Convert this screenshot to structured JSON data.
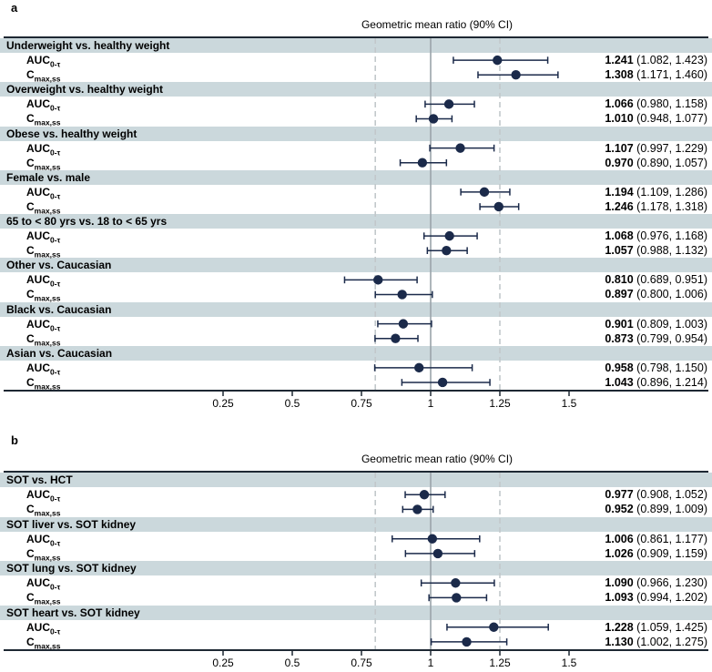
{
  "colors": {
    "band": "#cbd8dc",
    "marker": "#1b2a4a",
    "ci_line": "#1b2a4a",
    "frame": "#1e2833",
    "reference_solid": "#9aa4aa",
    "reference_dashed": "#c2c8cb"
  },
  "chart_data": [
    {
      "type": "forest",
      "panel_label": "a",
      "title": "Geometric mean ratio (90% CI)",
      "xlabel": "Geometric mean ratio",
      "xlim": [
        0.05,
        2.0
      ],
      "tick_values": [
        0.25,
        0.5,
        0.75,
        1,
        1.25,
        1.5
      ],
      "tick_labels": [
        "0.25",
        "0.5",
        "0.75",
        "1",
        "1.25",
        "1.5"
      ],
      "reference_line_solid": 1,
      "reference_lines_dashed": [
        0.8,
        1.25
      ],
      "groups": [
        {
          "label": "Underweight vs. healthy weight",
          "rows": [
            {
              "metric_base": "AUC",
              "metric_sub": "0-τ",
              "estimate": 1.241,
              "ci_lower": 1.082,
              "ci_upper": 1.423
            },
            {
              "metric_base": "C",
              "metric_sub": "max,ss",
              "estimate": 1.308,
              "ci_lower": 1.171,
              "ci_upper": 1.46
            }
          ]
        },
        {
          "label": "Overweight vs. healthy weight",
          "rows": [
            {
              "metric_base": "AUC",
              "metric_sub": "0-τ",
              "estimate": 1.066,
              "ci_lower": 0.98,
              "ci_upper": 1.158
            },
            {
              "metric_base": "C",
              "metric_sub": "max,ss",
              "estimate": 1.01,
              "ci_lower": 0.948,
              "ci_upper": 1.077
            }
          ]
        },
        {
          "label": "Obese vs. healthy weight",
          "rows": [
            {
              "metric_base": "AUC",
              "metric_sub": "0-τ",
              "estimate": 1.107,
              "ci_lower": 0.997,
              "ci_upper": 1.229
            },
            {
              "metric_base": "C",
              "metric_sub": "max,ss",
              "estimate": 0.97,
              "ci_lower": 0.89,
              "ci_upper": 1.057
            }
          ]
        },
        {
          "label": "Female vs. male",
          "rows": [
            {
              "metric_base": "AUC",
              "metric_sub": "0-τ",
              "estimate": 1.194,
              "ci_lower": 1.109,
              "ci_upper": 1.286
            },
            {
              "metric_base": "C",
              "metric_sub": "max,ss",
              "estimate": 1.246,
              "ci_lower": 1.178,
              "ci_upper": 1.318
            }
          ]
        },
        {
          "label": "65 to < 80 yrs vs. 18 to < 65 yrs",
          "rows": [
            {
              "metric_base": "AUC",
              "metric_sub": "0-τ",
              "estimate": 1.068,
              "ci_lower": 0.976,
              "ci_upper": 1.168
            },
            {
              "metric_base": "C",
              "metric_sub": "max,ss",
              "estimate": 1.057,
              "ci_lower": 0.988,
              "ci_upper": 1.132
            }
          ]
        },
        {
          "label": "Other vs. Caucasian",
          "rows": [
            {
              "metric_base": "AUC",
              "metric_sub": "0-τ",
              "estimate": 0.81,
              "ci_lower": 0.689,
              "ci_upper": 0.951
            },
            {
              "metric_base": "C",
              "metric_sub": "max,ss",
              "estimate": 0.897,
              "ci_lower": 0.8,
              "ci_upper": 1.006
            }
          ]
        },
        {
          "label": "Black vs. Caucasian",
          "rows": [
            {
              "metric_base": "AUC",
              "metric_sub": "0-τ",
              "estimate": 0.901,
              "ci_lower": 0.809,
              "ci_upper": 1.003
            },
            {
              "metric_base": "C",
              "metric_sub": "max,ss",
              "estimate": 0.873,
              "ci_lower": 0.799,
              "ci_upper": 0.954
            }
          ]
        },
        {
          "label": "Asian vs. Caucasian",
          "rows": [
            {
              "metric_base": "AUC",
              "metric_sub": "0-τ",
              "estimate": 0.958,
              "ci_lower": 0.798,
              "ci_upper": 1.15
            },
            {
              "metric_base": "C",
              "metric_sub": "max,ss",
              "estimate": 1.043,
              "ci_lower": 0.896,
              "ci_upper": 1.214
            }
          ]
        }
      ]
    },
    {
      "type": "forest",
      "panel_label": "b",
      "title": "Geometric mean ratio (90% CI)",
      "xlabel": "Geometric mean ratio",
      "xlim": [
        0.05,
        2.0
      ],
      "tick_values": [
        0.25,
        0.5,
        0.75,
        1,
        1.25,
        1.5
      ],
      "tick_labels": [
        "0.25",
        "0.5",
        "0.75",
        "1",
        "1.25",
        "1.5"
      ],
      "reference_line_solid": 1,
      "reference_lines_dashed": [
        0.8,
        1.25
      ],
      "groups": [
        {
          "label": "SOT vs. HCT",
          "rows": [
            {
              "metric_base": "AUC",
              "metric_sub": "0-τ",
              "estimate": 0.977,
              "ci_lower": 0.908,
              "ci_upper": 1.052
            },
            {
              "metric_base": "C",
              "metric_sub": "max,ss",
              "estimate": 0.952,
              "ci_lower": 0.899,
              "ci_upper": 1.009
            }
          ]
        },
        {
          "label": "SOT liver vs. SOT kidney",
          "rows": [
            {
              "metric_base": "AUC",
              "metric_sub": "0-τ",
              "estimate": 1.006,
              "ci_lower": 0.861,
              "ci_upper": 1.177
            },
            {
              "metric_base": "C",
              "metric_sub": "max,ss",
              "estimate": 1.026,
              "ci_lower": 0.909,
              "ci_upper": 1.159
            }
          ]
        },
        {
          "label": "SOT lung vs. SOT kidney",
          "rows": [
            {
              "metric_base": "AUC",
              "metric_sub": "0-τ",
              "estimate": 1.09,
              "ci_lower": 0.966,
              "ci_upper": 1.23
            },
            {
              "metric_base": "C",
              "metric_sub": "max,ss",
              "estimate": 1.093,
              "ci_lower": 0.994,
              "ci_upper": 1.202
            }
          ]
        },
        {
          "label": "SOT heart vs. SOT kidney",
          "rows": [
            {
              "metric_base": "AUC",
              "metric_sub": "0-τ",
              "estimate": 1.228,
              "ci_lower": 1.059,
              "ci_upper": 1.425
            },
            {
              "metric_base": "C",
              "metric_sub": "max,ss",
              "estimate": 1.13,
              "ci_lower": 1.002,
              "ci_upper": 1.275
            }
          ]
        }
      ]
    }
  ]
}
